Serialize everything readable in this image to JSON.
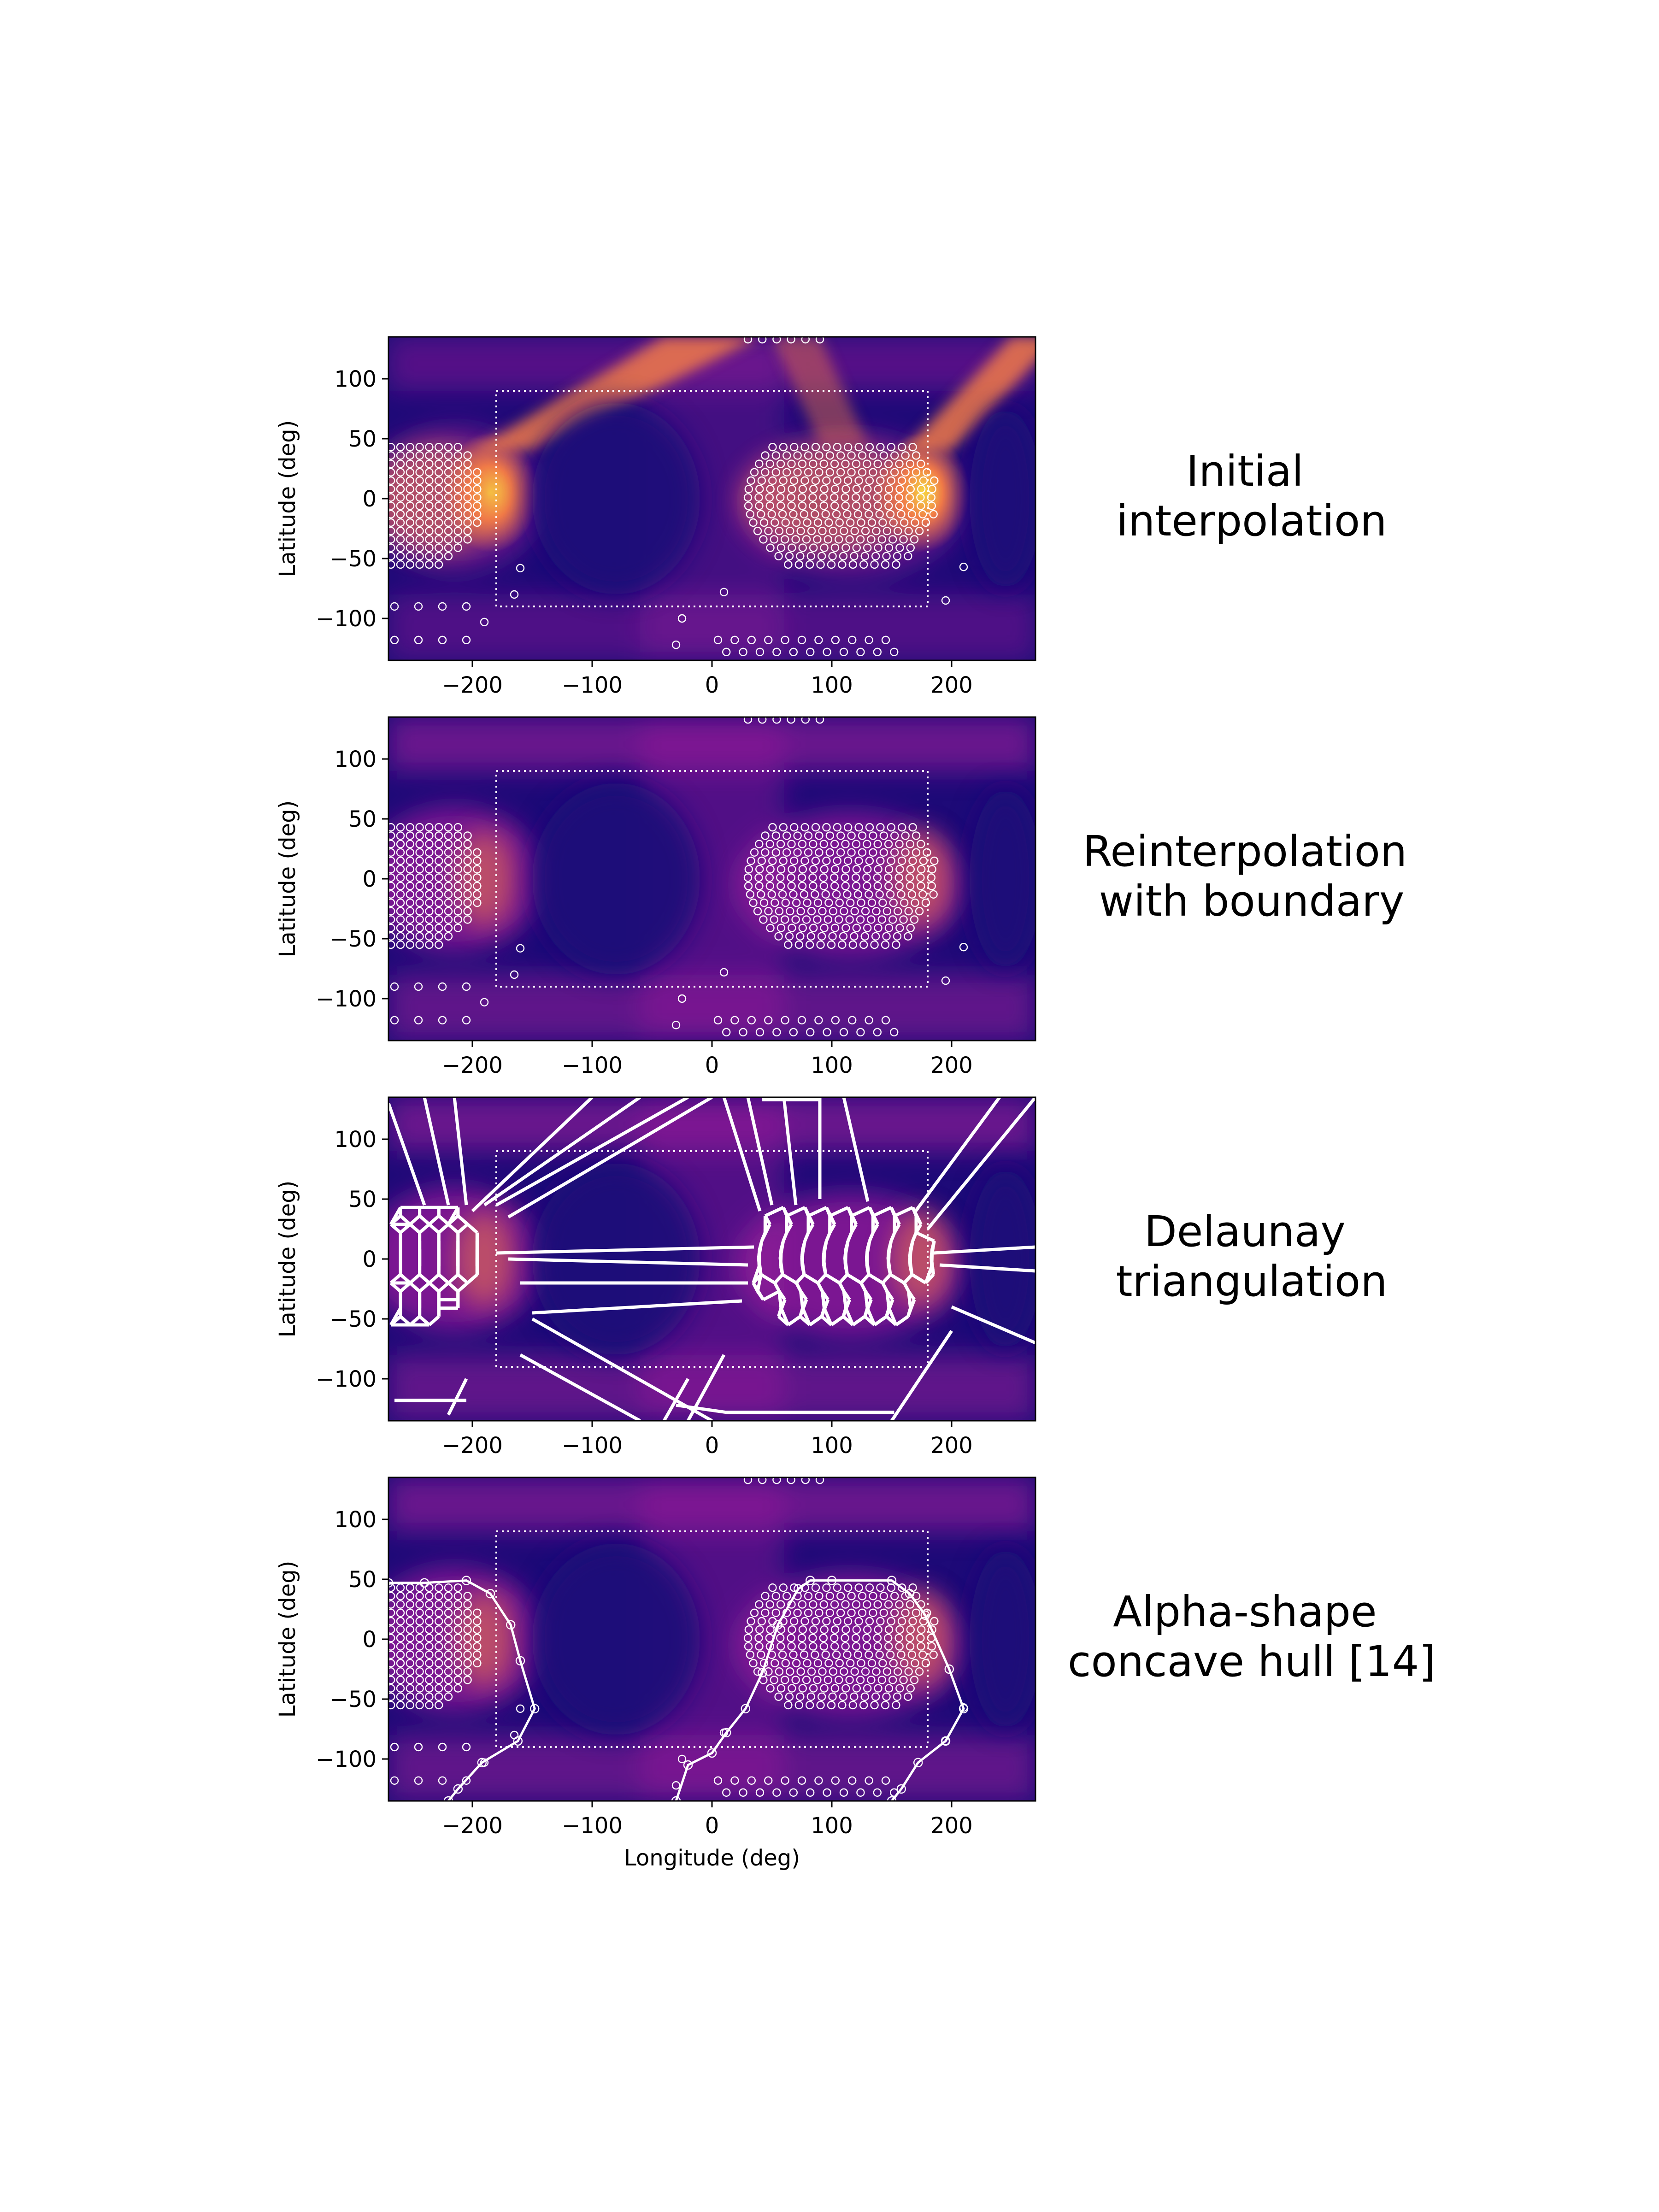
{
  "figure": {
    "xlabel": "Longitude (deg)",
    "ylabel": "Latitude (deg)"
  },
  "colors": {
    "background_low": "#1e0a78",
    "mid": "#9b1d9b",
    "high": "#f07a48",
    "peak": "#f8f040",
    "overlay": "#ffffff"
  },
  "chart_data": [
    {
      "type": "heatmap",
      "title_lines": [
        "Initial",
        "interpolation"
      ],
      "xlim": [
        -270,
        270
      ],
      "ylim": [
        -135,
        135
      ],
      "xticks": [
        -200,
        -100,
        0,
        100,
        200
      ],
      "yticks": [
        100,
        50,
        0,
        -50,
        -100
      ],
      "xtick_labels": [
        "−200",
        "−100",
        "0",
        "100",
        "200"
      ],
      "ytick_labels": [
        "100",
        "50",
        "0",
        "−50",
        "−100"
      ],
      "boundary_box": {
        "lon": [
          -180,
          180
        ],
        "lat": [
          -90,
          90
        ]
      },
      "overlay": "points",
      "intensity": "high"
    },
    {
      "type": "heatmap",
      "title_lines": [
        "Reinterpolation",
        "with boundary"
      ],
      "xlim": [
        -270,
        270
      ],
      "ylim": [
        -135,
        135
      ],
      "xticks": [
        -200,
        -100,
        0,
        100,
        200
      ],
      "yticks": [
        100,
        50,
        0,
        -50,
        -100
      ],
      "xtick_labels": [
        "−200",
        "−100",
        "0",
        "100",
        "200"
      ],
      "ytick_labels": [
        "100",
        "50",
        "0",
        "−50",
        "−100"
      ],
      "boundary_box": {
        "lon": [
          -180,
          180
        ],
        "lat": [
          -90,
          90
        ]
      },
      "overlay": "points",
      "intensity": "medium"
    },
    {
      "type": "heatmap",
      "title_lines": [
        "Delaunay",
        "triangulation"
      ],
      "xlim": [
        -270,
        270
      ],
      "ylim": [
        -135,
        135
      ],
      "xticks": [
        -200,
        -100,
        0,
        100,
        200
      ],
      "yticks": [
        100,
        50,
        0,
        -50,
        -100
      ],
      "xtick_labels": [
        "−200",
        "−100",
        "0",
        "100",
        "200"
      ],
      "ytick_labels": [
        "100",
        "50",
        "0",
        "−50",
        "−100"
      ],
      "boundary_box": {
        "lon": [
          -180,
          180
        ],
        "lat": [
          -90,
          90
        ]
      },
      "overlay": "triangulation",
      "intensity": "medium"
    },
    {
      "type": "heatmap",
      "title_lines": [
        "Alpha-shape",
        "concave hull [14]"
      ],
      "xlim": [
        -270,
        270
      ],
      "ylim": [
        -135,
        135
      ],
      "xticks": [
        -200,
        -100,
        0,
        100,
        200
      ],
      "yticks": [
        100,
        50,
        0,
        -50,
        -100
      ],
      "xtick_labels": [
        "−200",
        "−100",
        "0",
        "100",
        "200"
      ],
      "ytick_labels": [
        "100",
        "50",
        "0",
        "−50",
        "−100"
      ],
      "boundary_box": {
        "lon": [
          -180,
          180
        ],
        "lat": [
          -90,
          90
        ]
      },
      "overlay": "hull",
      "intensity": "medium",
      "hull_left": [
        [
          -270,
          47
        ],
        [
          -240,
          47
        ],
        [
          -205,
          49
        ],
        [
          -185,
          38
        ],
        [
          -168,
          12
        ],
        [
          -160,
          -18
        ],
        [
          -148,
          -58
        ],
        [
          -162,
          -85
        ],
        [
          -192,
          -103
        ],
        [
          -212,
          -125
        ],
        [
          -220,
          -135
        ]
      ],
      "hull_right": [
        [
          -30,
          -135
        ],
        [
          -20,
          -105
        ],
        [
          0,
          -95
        ],
        [
          12,
          -78
        ],
        [
          28,
          -58
        ],
        [
          42,
          -28
        ],
        [
          55,
          12
        ],
        [
          72,
          42
        ],
        [
          82,
          49
        ],
        [
          100,
          49
        ],
        [
          150,
          49
        ],
        [
          165,
          38
        ],
        [
          178,
          20
        ],
        [
          198,
          -25
        ],
        [
          210,
          -58
        ],
        [
          195,
          -85
        ],
        [
          172,
          -103
        ],
        [
          158,
          -125
        ],
        [
          150,
          -135
        ]
      ]
    }
  ]
}
